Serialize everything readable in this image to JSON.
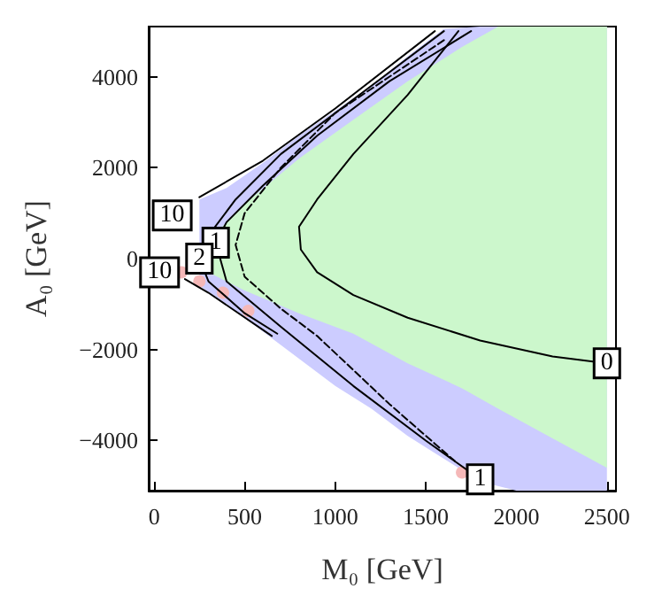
{
  "chart_data": {
    "type": "line",
    "xlabel": "M₀ [GeV]",
    "ylabel": "A₀ [GeV]",
    "xlim": [
      -30,
      2550
    ],
    "ylim": [
      -5100,
      5100
    ],
    "xticks": [
      0,
      500,
      1000,
      1500,
      2000,
      2500
    ],
    "yticks": [
      -4000,
      -2000,
      0,
      2000,
      4000
    ],
    "grid": false,
    "series": [
      {
        "type": "line",
        "color": "#ccccff",
        "x": [
          250,
          400,
          600,
          800,
          1000,
          1200,
          1400,
          1600,
          1800,
          2000,
          2200,
          2500
        ],
        "values": [
          null,
          null,
          null,
          null,
          null,
          null,
          null,
          null,
          null,
          null,
          null,
          null
        ],
        "lower": [
          -600,
          -1000,
          -1600,
          -2200,
          -2800,
          -3300,
          -3900,
          -4400,
          -4900,
          -5100,
          -5100,
          -5100
        ],
        "upper": [
          1300,
          1550,
          2100,
          2700,
          3250,
          3800,
          4450,
          5050,
          5100,
          5100,
          5100,
          5100
        ]
      },
      {
        "type": "line",
        "color": "#ccf7cc",
        "x": [
          200,
          300,
          500,
          800,
          1100,
          1400,
          1700,
          1900,
          2200,
          2500
        ],
        "values": [
          null,
          null,
          null,
          null,
          null,
          null,
          null,
          null,
          null,
          null
        ],
        "lower": [
          0,
          -300,
          -700,
          -1200,
          -1650,
          -2300,
          -2850,
          -3300,
          -3950,
          -4600
        ],
        "upper": [
          0,
          400,
          1200,
          2200,
          3050,
          3900,
          4650,
          5100,
          5100,
          5100
        ]
      },
      {
        "type": "scatter",
        "color": "#f5b8b8",
        "x": [
          150,
          250,
          380,
          520,
          1700
        ],
        "values": [
          -300,
          -500,
          -750,
          -1150,
          -4700
        ]
      },
      {
        "color": "#000000",
        "line_style": "solid",
        "x": [
          1680,
          1400,
          1100,
          900,
          800,
          810,
          900,
          1100,
          1400,
          1800,
          2200,
          2500
        ],
        "values": [
          5000,
          3600,
          2300,
          1300,
          700,
          200,
          -300,
          -800,
          -1300,
          -1800,
          -2150,
          -2300
        ]
      },
      {
        "color": "#000000",
        "line_style": "dashed",
        "x": [
          1600,
          1300,
          1000,
          700,
          500,
          450,
          500,
          700,
          900,
          1300,
          1660
        ],
        "values": [
          4800,
          4000,
          3200,
          2000,
          1000,
          300,
          -400,
          -1100,
          -1700,
          -3200,
          -4450
        ]
      },
      {
        "color": "#000000",
        "line_style": "solid",
        "x": [
          1750,
          1300,
          900,
          600,
          400,
          340,
          400,
          700,
          1100,
          1500,
          1800
        ],
        "values": [
          5000,
          3900,
          2700,
          1600,
          800,
          350,
          -500,
          -1500,
          -2800,
          -4000,
          -4850
        ]
      },
      {
        "color": "#000000",
        "line_style": "solid",
        "x": [
          1600,
          1100,
          700,
          450,
          280,
          250,
          300,
          500,
          680
        ],
        "values": [
          5000,
          3500,
          2300,
          1300,
          400,
          0,
          -500,
          -1200,
          -1650
        ]
      },
      {
        "color": "#000000",
        "line_style": "solid",
        "x": [
          1550,
          1000,
          600,
          250,
          200,
          170,
          300,
          650
        ],
        "values": [
          5000,
          3300,
          2150,
          1350,
          null,
          -450,
          -750,
          -1700
        ]
      }
    ],
    "annotations": [
      {
        "text": "0",
        "x": 2500,
        "y": -2300
      },
      {
        "text": "1",
        "x": 1800,
        "y": -4850
      },
      {
        "text": "1",
        "x": 340,
        "y": 350
      },
      {
        "text": "2",
        "x": 250,
        "y": 0
      },
      {
        "text": "10",
        "x": 100,
        "y": 950
      },
      {
        "text": "10",
        "x": 30,
        "y": -300
      }
    ]
  }
}
